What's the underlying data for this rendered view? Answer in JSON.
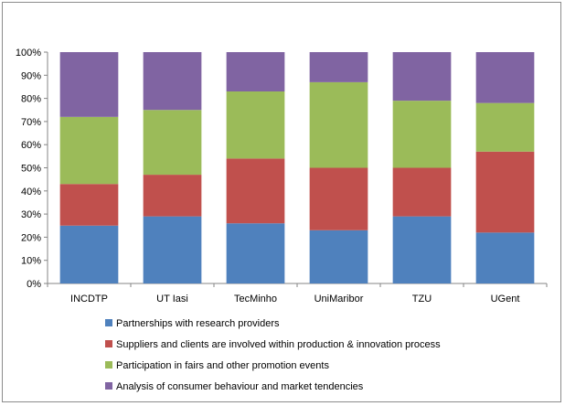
{
  "chart_data": {
    "type": "bar",
    "stacked": true,
    "percent_stacked": true,
    "categories": [
      "INCDTP",
      "UT Iasi",
      "TecMinho",
      "UniMaribor",
      "TZU",
      "UGent"
    ],
    "series": [
      {
        "name": "Partnerships with research providers",
        "color": "#4F81BD",
        "values": [
          25,
          29,
          26,
          23,
          29,
          22
        ]
      },
      {
        "name": "Suppliers and clients are involved within production & innovation process",
        "color": "#C0504D",
        "values": [
          18,
          18,
          28,
          27,
          21,
          35
        ]
      },
      {
        "name": "Participation in fairs and other promotion events",
        "color": "#9BBB59",
        "values": [
          29,
          28,
          29,
          37,
          29,
          21
        ]
      },
      {
        "name": "Analysis of consumer behaviour and market tendencies",
        "color": "#8064A2",
        "values": [
          28,
          25,
          17,
          13,
          21,
          22
        ]
      }
    ],
    "ylim": [
      0,
      100
    ],
    "yticks": [
      "0%",
      "10%",
      "20%",
      "30%",
      "40%",
      "50%",
      "60%",
      "70%",
      "80%",
      "90%",
      "100%"
    ],
    "grid": false,
    "legend_position": "bottom"
  }
}
